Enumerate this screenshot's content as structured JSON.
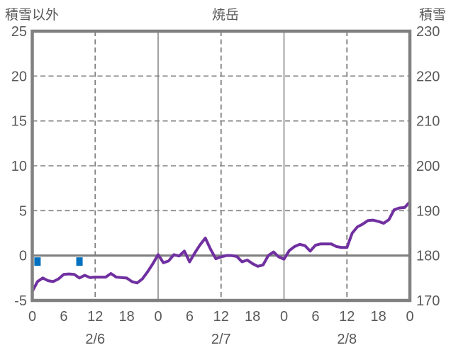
{
  "colors": {
    "background": "#FFFFFF",
    "grid": "#808080",
    "text": "#595959",
    "line": "#7030A0",
    "marker": "#0070C0"
  },
  "chart_data": {
    "type": "line",
    "title": "焼岳",
    "left_axis": {
      "label": "積雪以外",
      "min": -5,
      "max": 25,
      "ticks": [
        25,
        20,
        15,
        10,
        5,
        0,
        -5
      ]
    },
    "right_axis": {
      "label": "積雪",
      "min": 170,
      "max": 230,
      "ticks": [
        230,
        220,
        210,
        200,
        190,
        180,
        170
      ]
    },
    "x_axis": {
      "span_hours": 72,
      "tick_step_hours": 6,
      "hour_labels": [
        "0",
        "6",
        "12",
        "18",
        "0",
        "6",
        "12",
        "18",
        "0",
        "6",
        "12",
        "18",
        "0"
      ],
      "date_labels": [
        {
          "label": "2/6",
          "hour": 12
        },
        {
          "label": "2/7",
          "hour": 36
        },
        {
          "label": "2/8",
          "hour": 60
        }
      ],
      "solid_gridline_hours": [
        24,
        48
      ],
      "dashed_gridline_hours": [
        12,
        36,
        60
      ]
    },
    "series": [
      {
        "name": "observation-line",
        "color": "#7030A0",
        "axis": "left",
        "x_start_hour": 0,
        "x_step_hours": 1,
        "values": [
          -4.0,
          -2.9,
          -2.5,
          -2.8,
          -2.9,
          -2.6,
          -2.1,
          -2.05,
          -2.1,
          -2.5,
          -2.2,
          -2.45,
          -2.4,
          -2.4,
          -2.4,
          -2.0,
          -2.4,
          -2.45,
          -2.5,
          -2.9,
          -3.05,
          -2.6,
          -1.8,
          -0.9,
          0.1,
          -0.8,
          -0.6,
          0.1,
          -0.05,
          0.5,
          -0.7,
          0.3,
          1.2,
          1.95,
          0.7,
          -0.35,
          -0.15,
          0.0,
          0.0,
          -0.1,
          -0.7,
          -0.5,
          -0.9,
          -1.2,
          -1.05,
          0.0,
          0.4,
          -0.15,
          -0.4,
          0.55,
          1.0,
          1.25,
          1.1,
          0.5,
          1.15,
          1.3,
          1.3,
          1.3,
          1.0,
          0.9,
          0.9,
          2.5,
          3.2,
          3.5,
          3.9,
          3.95,
          3.8,
          3.6,
          4.0,
          5.1,
          5.3,
          5.35,
          6.0
        ]
      }
    ],
    "event_markers": {
      "name": "snow-event-markers",
      "color": "#0070C0",
      "hours": [
        1,
        9
      ],
      "value": -0.55
    }
  }
}
